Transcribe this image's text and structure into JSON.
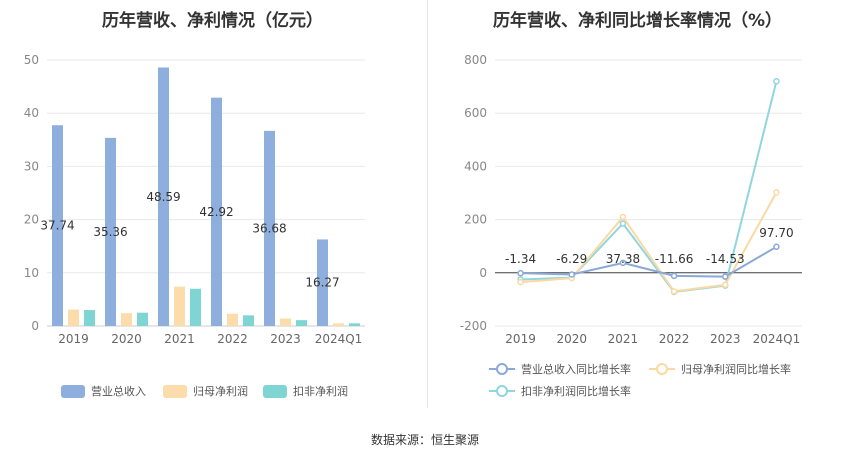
{
  "left_chart_title": "历年营收、净利情况（亿元）",
  "right_chart_title": "历年营收、净利同比增长率情况（%）",
  "source_text": "数据来源：恒生聚源",
  "chart_data": [
    {
      "type": "bar",
      "title": "历年营收、净利情况（亿元）",
      "categories": [
        "2019",
        "2020",
        "2021",
        "2022",
        "2023",
        "2024Q1"
      ],
      "ylim": [
        0,
        50
      ],
      "yticks": [
        0,
        10,
        20,
        30,
        40,
        50
      ],
      "grid": true,
      "legend_position": "bottom",
      "series": [
        {
          "name": "营业总收入",
          "color": "#8eaedd",
          "values": [
            37.74,
            35.36,
            48.59,
            42.92,
            36.68,
            16.27
          ],
          "labels": [
            "37.74",
            "35.36",
            "48.59",
            "42.92",
            "36.68",
            "16.27"
          ]
        },
        {
          "name": "归母净利润",
          "color": "#fbdcaa",
          "values": [
            3.1,
            2.4,
            7.4,
            2.3,
            1.4,
            0.5
          ]
        },
        {
          "name": "扣非净利润",
          "color": "#7fd5d3",
          "values": [
            3.0,
            2.5,
            7.0,
            2.0,
            1.1,
            0.5
          ]
        }
      ]
    },
    {
      "type": "line",
      "title": "历年营收、净利同比增长率情况（%）",
      "categories": [
        "2019",
        "2020",
        "2021",
        "2022",
        "2023",
        "2024Q1"
      ],
      "ylim": [
        -200,
        800
      ],
      "yticks": [
        -200,
        0,
        200,
        400,
        600,
        800
      ],
      "grid": true,
      "legend_position": "bottom",
      "series": [
        {
          "name": "营业总收入同比增长率",
          "color": "#8aa8d8",
          "values": [
            -1.34,
            -6.29,
            37.38,
            -11.66,
            -14.53,
            97.7
          ],
          "labels": [
            "-1.34",
            "-6.29",
            "37.38",
            "-11.66",
            "-14.53",
            "97.70"
          ]
        },
        {
          "name": "归母净利润同比增长率",
          "color": "#fbd9a3",
          "values": [
            -35,
            -20,
            210,
            -70,
            -45,
            302
          ]
        },
        {
          "name": "扣非净利润同比增长率",
          "color": "#8fd6df",
          "values": [
            -25,
            -18,
            185,
            -72,
            -48,
            720
          ]
        }
      ]
    }
  ]
}
